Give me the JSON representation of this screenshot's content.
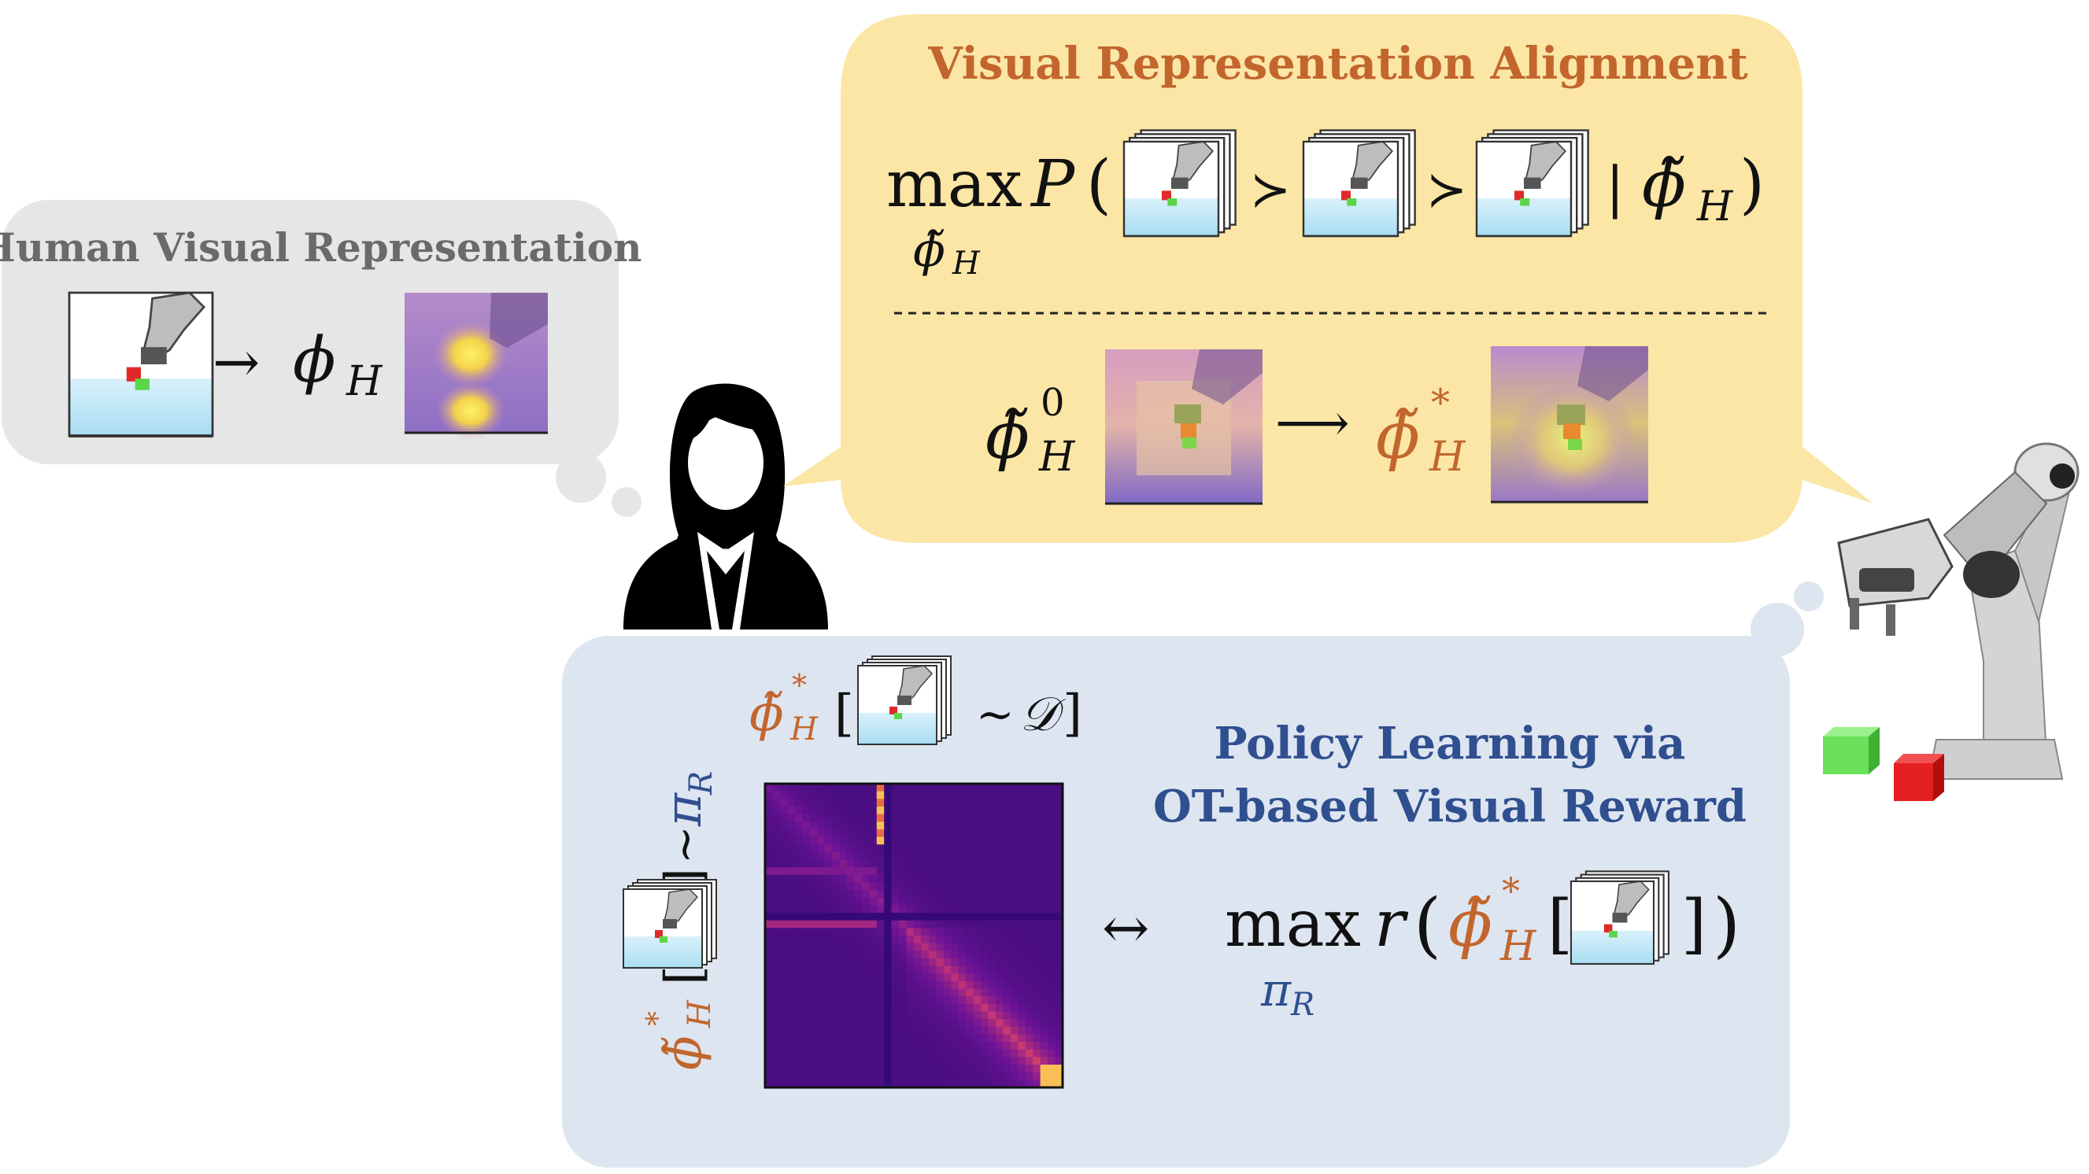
{
  "human_panel": {
    "title": "Human Visual Representation",
    "phi": "ϕ",
    "sub": "H"
  },
  "alignment_panel": {
    "title": "Visual Representation Alignment",
    "max": "max",
    "P": "P",
    "paren_open": "(",
    "paren_close": ")",
    "succ1": "≻",
    "succ2": "≻",
    "given_bar": "|",
    "phi_tilde": "ϕ̃",
    "sub": "H",
    "sup_init": "0",
    "sup_star": "*",
    "arrow": "⟶"
  },
  "policy_panel": {
    "title_line1": "Policy Learning via",
    "title_line2": "OT-based Visual Reward",
    "bracket_open": "[",
    "bracket_close": "]",
    "sim": "~",
    "dataset": "𝒟",
    "pi": "π",
    "pi_sub": "R",
    "double_arrow": "↔",
    "max": "max",
    "r": "r",
    "phi_tilde": "ϕ̃",
    "sub": "H",
    "sup_star": "*",
    "paren_open": "(",
    "paren_close": ")"
  },
  "colors": {
    "gray_panel": "#e6e6e6",
    "yellow_panel": "#fbe6a6",
    "blue_panel": "#dde5f1",
    "orange_text": "#c2662d",
    "blue_text": "#2f4f8f",
    "gray_text": "#6a6a6a",
    "heatmap_base": "#3a0d8a",
    "heatmap_hot": "#f4b746"
  },
  "icons": [
    "person-icon",
    "robot-arm-icon",
    "green-cube-icon",
    "red-cube-icon"
  ]
}
